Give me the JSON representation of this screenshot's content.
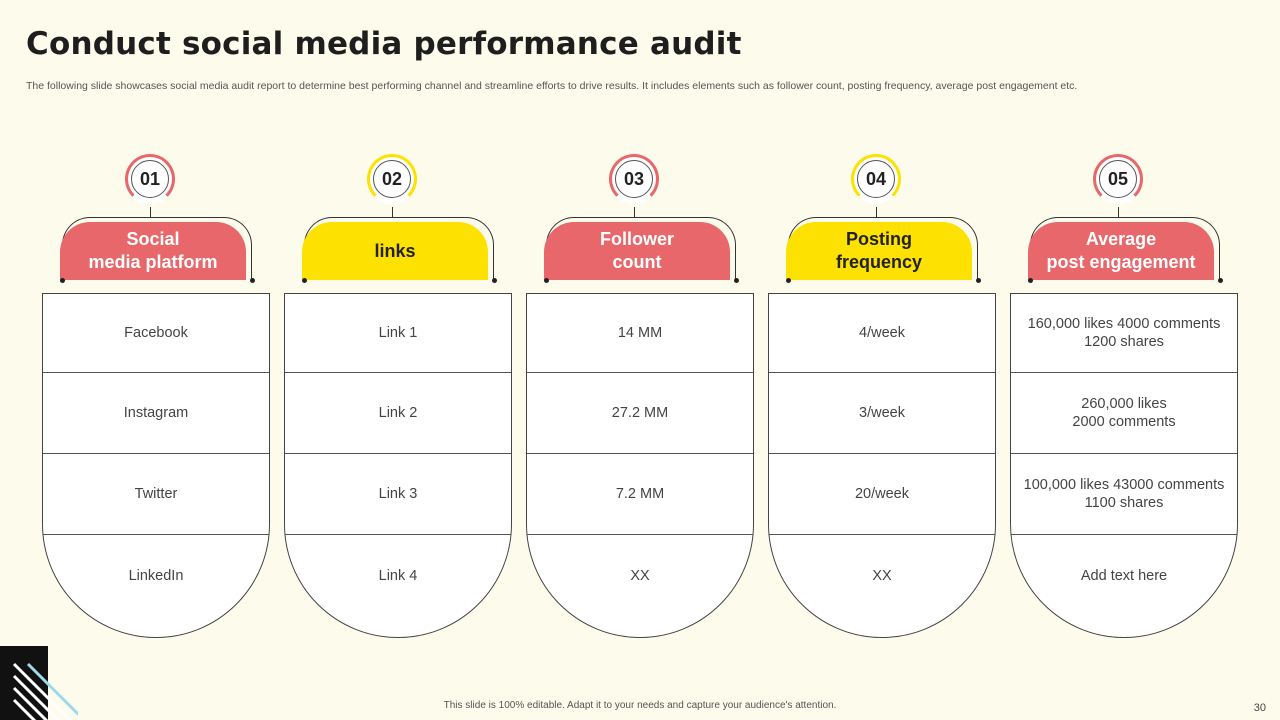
{
  "slide": {
    "title": "Conduct social media performance audit",
    "subtitle": "The following slide showcases social media audit report to determine best performing channel and streamline efforts to drive results. It includes elements such as follower count, posting frequency, average post engagement etc.",
    "footer": "This slide is 100% editable.  Adapt it to your needs and capture your audience's attention.",
    "page_number": "30"
  },
  "colors": {
    "coral": "#e8676b",
    "yellow": "#fde100",
    "background": "#fdfbec"
  },
  "columns": [
    {
      "number": "01",
      "accent": "coral",
      "header": "Social\nmedia platform",
      "cells": [
        "Facebook",
        "Instagram",
        "Twitter",
        "LinkedIn"
      ]
    },
    {
      "number": "02",
      "accent": "yellow",
      "header": "links",
      "cells": [
        "Link 1",
        "Link 2",
        "Link 3",
        "Link 4"
      ]
    },
    {
      "number": "03",
      "accent": "coral",
      "header": "Follower\ncount",
      "cells": [
        "14  MM",
        "27.2 MM",
        "7.2 MM",
        "XX"
      ]
    },
    {
      "number": "04",
      "accent": "yellow",
      "header": "Posting\nfrequency",
      "cells": [
        "4/week",
        "3/week",
        "20/week",
        "XX"
      ]
    },
    {
      "number": "05",
      "accent": "coral",
      "header": "Average\npost engagement",
      "cells": [
        "160,000 likes 4000 comments\n1200 shares",
        "260,000 likes\n2000 comments",
        "100,000 likes 43000 comments\n1100 shares",
        "Add text here"
      ]
    }
  ]
}
